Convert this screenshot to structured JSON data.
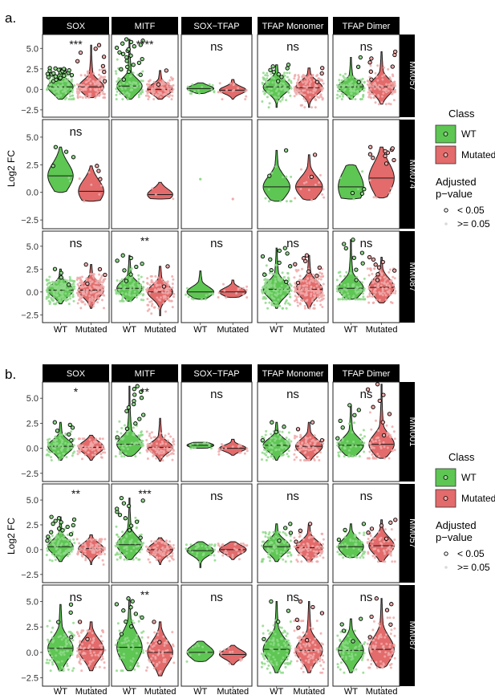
{
  "colors": {
    "wt_fill": "#5ec653",
    "wt_dot": "#8fd98a",
    "mutated_fill": "#e36b6b",
    "mutated_dot": "#f0a9a9",
    "strip_bg": "#000000",
    "strip_text": "#ffffff",
    "violin_outline": "#1a1a1a",
    "sig_point_outline": "#000000"
  },
  "legend": {
    "class_title": "Class",
    "class_items": [
      "WT",
      "Mutated"
    ],
    "pvalue_title_line1": "Adjusted",
    "pvalue_title_line2": "p−value",
    "pvalue_items": [
      "< 0.05",
      ">= 0.05"
    ]
  },
  "chart_data": [
    {
      "type": "violin",
      "panel_label": "a.",
      "ylabel": "Log2 FC",
      "ylim": [
        -3,
        6.3
      ],
      "yticks": [
        -2.5,
        0,
        2.5,
        5
      ],
      "ytick_labels": [
        "−2.5",
        "0.0",
        "2.5",
        "5.0"
      ],
      "x_categories": [
        "WT",
        "Mutated"
      ],
      "columns": [
        "SOX",
        "MITF",
        "SOX−TFAP",
        "TFAP Monomer",
        "TFAP Dimer"
      ],
      "rows": [
        "MM057",
        "MM074",
        "MM087"
      ],
      "significance": [
        [
          "***",
          "****",
          "ns",
          "ns",
          "ns"
        ],
        [
          "ns",
          "",
          "",
          "",
          ""
        ],
        [
          "ns",
          "**",
          "ns",
          "ns",
          "ns"
        ]
      ],
      "cells": [
        [
          {
            "wt": {
              "min": -1.2,
              "q1": -0.3,
              "median": 0.3,
              "q3": 1.0,
              "max": 2.6,
              "n": 110,
              "n_sig": 22
            },
            "mut": {
              "min": -1.0,
              "q1": -0.3,
              "median": 0.3,
              "q3": 1.0,
              "max": 5.4,
              "n": 110,
              "n_sig": 8
            }
          },
          {
            "wt": {
              "min": -1.2,
              "q1": -0.2,
              "median": 0.4,
              "q3": 1.2,
              "max": 6.1,
              "n": 90,
              "n_sig": 22
            },
            "mut": {
              "min": -1.2,
              "q1": -0.4,
              "median": 0.0,
              "q3": 0.6,
              "max": 2.3,
              "n": 90,
              "n_sig": 2
            }
          },
          {
            "wt": {
              "min": -0.5,
              "q1": -0.2,
              "median": 0.1,
              "q3": 0.4,
              "max": 0.8,
              "n": 14,
              "n_sig": 0
            },
            "mut": {
              "min": -1.2,
              "q1": -0.4,
              "median": -0.1,
              "q3": 0.3,
              "max": 1.2,
              "n": 16,
              "n_sig": 0
            }
          },
          {
            "wt": {
              "min": -2.2,
              "q1": -0.3,
              "median": 0.3,
              "q3": 1.0,
              "max": 3.0,
              "n": 100,
              "n_sig": 8
            },
            "mut": {
              "min": -2.2,
              "q1": -0.4,
              "median": 0.2,
              "q3": 0.9,
              "max": 2.6,
              "n": 110,
              "n_sig": 3
            }
          },
          {
            "wt": {
              "min": -1.2,
              "q1": -0.2,
              "median": 0.3,
              "q3": 0.9,
              "max": 3.9,
              "n": 90,
              "n_sig": 3
            },
            "mut": {
              "min": -1.8,
              "q1": -0.3,
              "median": 0.3,
              "q3": 1.2,
              "max": 4.6,
              "n": 100,
              "n_sig": 7
            }
          }
        ],
        [
          {
            "wt": {
              "min": 0.0,
              "q1": 0.6,
              "median": 1.5,
              "q3": 2.4,
              "max": 4.1,
              "n": 6,
              "n_sig": 4
            },
            "mut": {
              "min": -0.8,
              "q1": -0.4,
              "median": 0.1,
              "q3": 1.2,
              "max": 2.4,
              "n": 9,
              "n_sig": 3
            }
          },
          {
            "wt": null,
            "mut": {
              "min": -0.6,
              "q1": -0.4,
              "median": -0.2,
              "q3": 0.4,
              "max": 0.9,
              "n": 3,
              "n_sig": 0
            }
          },
          {
            "wt": {
              "single": 1.2
            },
            "mut": {
              "single": -0.6
            }
          },
          {
            "wt": {
              "min": -0.8,
              "q1": 0.0,
              "median": 0.5,
              "q3": 1.5,
              "max": 3.8,
              "n": 14,
              "n_sig": 2
            },
            "mut": {
              "min": -0.7,
              "q1": 0.0,
              "median": 0.5,
              "q3": 1.4,
              "max": 3.4,
              "n": 16,
              "n_sig": 2
            }
          },
          {
            "wt": {
              "min": -0.6,
              "q1": 0.0,
              "median": 0.5,
              "q3": 2.2,
              "max": 2.5,
              "n": 8,
              "n_sig": 3
            },
            "mut": {
              "min": -0.5,
              "q1": 0.5,
              "median": 1.3,
              "q3": 2.6,
              "max": 4.1,
              "n": 16,
              "n_sig": 10
            }
          }
        ],
        [
          {
            "wt": {
              "min": -1.3,
              "q1": -0.3,
              "median": 0.2,
              "q3": 0.8,
              "max": 2.5,
              "n": 150,
              "n_sig": 4
            },
            "mut": {
              "min": -1.8,
              "q1": -0.4,
              "median": 0.2,
              "q3": 0.9,
              "max": 3.0,
              "n": 160,
              "n_sig": 4
            }
          },
          {
            "wt": {
              "min": -1.0,
              "q1": 0.0,
              "median": 0.4,
              "q3": 1.2,
              "max": 4.0,
              "n": 90,
              "n_sig": 8
            },
            "mut": {
              "min": -2.6,
              "q1": -0.6,
              "median": 0.0,
              "q3": 0.6,
              "max": 2.8,
              "n": 100,
              "n_sig": 2
            }
          },
          {
            "wt": {
              "min": -0.8,
              "q1": -0.3,
              "median": 0.0,
              "q3": 0.6,
              "max": 2.3,
              "n": 12,
              "n_sig": 0
            },
            "mut": {
              "min": -0.6,
              "q1": -0.3,
              "median": 0.0,
              "q3": 0.4,
              "max": 1.3,
              "n": 14,
              "n_sig": 0
            }
          },
          {
            "wt": {
              "min": -1.8,
              "q1": -0.3,
              "median": 0.3,
              "q3": 1.1,
              "max": 4.8,
              "n": 150,
              "n_sig": 10
            },
            "mut": {
              "min": -1.8,
              "q1": -0.4,
              "median": 0.3,
              "q3": 1.0,
              "max": 4.0,
              "n": 160,
              "n_sig": 8
            }
          },
          {
            "wt": {
              "min": -0.8,
              "q1": -0.1,
              "median": 0.4,
              "q3": 1.3,
              "max": 5.7,
              "n": 90,
              "n_sig": 8
            },
            "mut": {
              "min": -1.2,
              "q1": -0.2,
              "median": 0.5,
              "q3": 1.3,
              "max": 3.8,
              "n": 110,
              "n_sig": 8
            }
          }
        ]
      ]
    },
    {
      "type": "violin",
      "panel_label": "b.",
      "ylabel": "Log2 FC",
      "ylim": [
        -3,
        6.3
      ],
      "yticks": [
        -2.5,
        0,
        2.5,
        5
      ],
      "ytick_labels": [
        "−2.5",
        "0.0",
        "2.5",
        "5.0"
      ],
      "x_categories": [
        "WT",
        "Mutated"
      ],
      "columns": [
        "SOX",
        "MITF",
        "SOX−TFAP",
        "TFAP Monomer",
        "TFAP Dimer"
      ],
      "rows": [
        "MM001",
        "MM057",
        "MM087"
      ],
      "significance": [
        [
          "*",
          "**",
          "ns",
          "ns",
          "ns"
        ],
        [
          "**",
          "***",
          "ns",
          "ns",
          "ns"
        ],
        [
          "ns",
          "**",
          "ns",
          "ns",
          "ns"
        ]
      ],
      "cells": [
        [
          {
            "wt": {
              "min": -1.2,
              "q1": -0.2,
              "median": 0.2,
              "q3": 0.8,
              "max": 2.6,
              "n": 80,
              "n_sig": 6
            },
            "mut": {
              "min": -1.2,
              "q1": -0.3,
              "median": 0.1,
              "q3": 0.6,
              "max": 1.3,
              "n": 70,
              "n_sig": 0
            }
          },
          {
            "wt": {
              "min": -0.8,
              "q1": -0.1,
              "median": 0.4,
              "q3": 1.1,
              "max": 6.2,
              "n": 80,
              "n_sig": 14
            },
            "mut": {
              "min": -1.3,
              "q1": -0.3,
              "median": 0.1,
              "q3": 0.6,
              "max": 3.0,
              "n": 80,
              "n_sig": 0
            }
          },
          {
            "wt": {
              "min": 0.0,
              "q1": 0.1,
              "median": 0.3,
              "q3": 0.5,
              "max": 0.6,
              "n": 12,
              "n_sig": 0
            },
            "mut": {
              "min": -0.7,
              "q1": -0.2,
              "median": 0.0,
              "q3": 0.3,
              "max": 0.9,
              "n": 18,
              "n_sig": 0
            }
          },
          {
            "wt": {
              "min": -1.2,
              "q1": -0.2,
              "median": 0.3,
              "q3": 0.8,
              "max": 2.6,
              "n": 80,
              "n_sig": 4
            },
            "mut": {
              "min": -1.2,
              "q1": -0.3,
              "median": 0.2,
              "q3": 0.8,
              "max": 2.6,
              "n": 80,
              "n_sig": 3
            }
          },
          {
            "wt": {
              "min": -0.8,
              "q1": -0.2,
              "median": 0.3,
              "q3": 1.0,
              "max": 4.3,
              "n": 50,
              "n_sig": 6
            },
            "mut": {
              "min": -1.0,
              "q1": -0.2,
              "median": 0.4,
              "q3": 1.3,
              "max": 6.4,
              "n": 60,
              "n_sig": 8
            }
          }
        ],
        [
          {
            "wt": {
              "min": -1.2,
              "q1": -0.2,
              "median": 0.3,
              "q3": 0.9,
              "max": 3.3,
              "n": 90,
              "n_sig": 14
            },
            "mut": {
              "min": -1.5,
              "q1": -0.3,
              "median": 0.1,
              "q3": 0.6,
              "max": 1.5,
              "n": 80,
              "n_sig": 0
            }
          },
          {
            "wt": {
              "min": -1.0,
              "q1": -0.1,
              "median": 0.5,
              "q3": 1.2,
              "max": 5.2,
              "n": 80,
              "n_sig": 12
            },
            "mut": {
              "min": -1.5,
              "q1": -0.3,
              "median": 0.0,
              "q3": 0.6,
              "max": 1.2,
              "n": 70,
              "n_sig": 0
            }
          },
          {
            "wt": {
              "min": -1.8,
              "q1": -0.6,
              "median": -0.1,
              "q3": 0.2,
              "max": 0.8,
              "n": 30,
              "n_sig": 0
            },
            "mut": {
              "min": -1.0,
              "q1": -0.3,
              "median": 0.0,
              "q3": 0.4,
              "max": 0.8,
              "n": 28,
              "n_sig": 0
            }
          },
          {
            "wt": {
              "min": -1.2,
              "q1": -0.2,
              "median": 0.3,
              "q3": 0.9,
              "max": 2.6,
              "n": 90,
              "n_sig": 4
            },
            "mut": {
              "min": -1.2,
              "q1": -0.3,
              "median": 0.2,
              "q3": 0.8,
              "max": 2.6,
              "n": 80,
              "n_sig": 3
            }
          },
          {
            "wt": {
              "min": -0.8,
              "q1": -0.2,
              "median": 0.3,
              "q3": 1.0,
              "max": 2.6,
              "n": 50,
              "n_sig": 3
            },
            "mut": {
              "min": -1.2,
              "q1": -0.2,
              "median": 0.4,
              "q3": 1.1,
              "max": 3.0,
              "n": 60,
              "n_sig": 6
            }
          }
        ],
        [
          {
            "wt": {
              "min": -1.8,
              "q1": -0.2,
              "median": 0.4,
              "q3": 1.5,
              "max": 4.7,
              "n": 80,
              "n_sig": 4
            },
            "mut": {
              "min": -1.8,
              "q1": -0.3,
              "median": 0.3,
              "q3": 1.3,
              "max": 3.0,
              "n": 80,
              "n_sig": 2
            }
          },
          {
            "wt": {
              "min": -1.8,
              "q1": -0.3,
              "median": 0.5,
              "q3": 1.8,
              "max": 5.3,
              "n": 60,
              "n_sig": 10
            },
            "mut": {
              "min": -2.3,
              "q1": -0.8,
              "median": 0.0,
              "q3": 1.0,
              "max": 3.0,
              "n": 60,
              "n_sig": 2
            }
          },
          {
            "wt": {
              "min": -0.9,
              "q1": -0.4,
              "median": 0.0,
              "q3": 0.6,
              "max": 1.1,
              "n": 10,
              "n_sig": 0
            },
            "mut": {
              "min": -1.2,
              "q1": -0.5,
              "median": -0.2,
              "q3": 0.2,
              "max": 0.7,
              "n": 10,
              "n_sig": 0
            }
          },
          {
            "wt": {
              "min": -2.0,
              "q1": -0.4,
              "median": 0.3,
              "q3": 1.3,
              "max": 5.0,
              "n": 100,
              "n_sig": 4
            },
            "mut": {
              "min": -2.0,
              "q1": -0.4,
              "median": 0.2,
              "q3": 1.2,
              "max": 5.0,
              "n": 100,
              "n_sig": 6
            }
          },
          {
            "wt": {
              "min": -2.0,
              "q1": -0.5,
              "median": 0.2,
              "q3": 1.1,
              "max": 3.3,
              "n": 70,
              "n_sig": 4
            },
            "mut": {
              "min": -1.5,
              "q1": -0.4,
              "median": 0.3,
              "q3": 1.5,
              "max": 5.3,
              "n": 80,
              "n_sig": 6
            }
          }
        ]
      ]
    }
  ]
}
